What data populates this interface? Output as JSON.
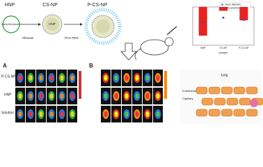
{
  "top": {
    "labels": [
      "HNP",
      "CS-NP",
      "P-CS-NP"
    ],
    "core": "HNP",
    "chitosan": "chitosan",
    "plg_peg": "PLG-PEG",
    "drug": "alpha-ikb plasmid"
  },
  "bar_panel": {
    "legend": [
      "mean diameter",
      "zeta potential"
    ],
    "categories": [
      "HNP",
      "CS-NP",
      "P-CS-NP"
    ],
    "x_label": "sample",
    "diameter": [
      150,
      180,
      165
    ],
    "zeta": [
      -30,
      -4,
      -14
    ],
    "ylim": [
      0,
      250
    ],
    "y2lim": [
      -40,
      0
    ]
  },
  "panel_a": {
    "letter": "A",
    "rows": [
      "P-CS-NP",
      "HNP",
      "Solution"
    ]
  },
  "panel_b": {
    "letter": "B"
  },
  "lung": {
    "labels": [
      "lung",
      "Endothelial Cell",
      "Capillary"
    ]
  }
}
